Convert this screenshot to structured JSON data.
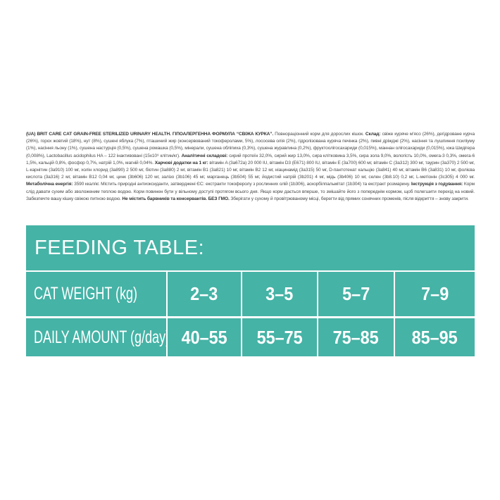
{
  "description": [
    {
      "bold": true,
      "text": "(UA) BRIT CARE CAT GRAIN-FREE STERILIZED URINARY HEALTH. ГІПОАЛЕРГЕННА ФОРМУЛА “СВІЖА КУРКА”. "
    },
    {
      "bold": false,
      "text": "Повнораціонний корм для дорослих кішок. "
    },
    {
      "bold": true,
      "text": "Склад: "
    },
    {
      "bold": false,
      "text": "свіже куряче м'ясо (26%), дегідроване курча (26%), горох жовтий (18%), нут (8%), сушені яблука (7%), пташиний жир (консервований токоферолами, 5%), лососева олія (2%), гідролізована куряча печінка (2%), пивні дріжджі (2%), насіння та лушпиння псиліуму (1%), насіння льону (1%), сушена настурція (0,5%), сушена ромашка (0,5%), мінерали, сушена обліпиха (0,3%), сушена журавлина (0,2%), фруктоолігосахариди (0,015%), маннан олігосахариди (0,015%), юка Шидігера (0,008%), Lactobacillus acidophilus HA – 122 інактивовані (15x10⁹ клітин/кг). "
    },
    {
      "bold": true,
      "text": "Аналітичні складові: "
    },
    {
      "bold": false,
      "text": "сирий протеїн 32,0%, сирий жир 13,0%, сира клітковина 3,5%, сира зола 9,0%, вологість 10,0%, омега-3 0,3%, омега-6 1,5%, кальцій 0,8%, фосфор 0,7%, натрій 1,0%, магній 0,04%. "
    },
    {
      "bold": true,
      "text": "Харчові додатки на 1 кг: "
    },
    {
      "bold": false,
      "text": "вітамін A (3a672a) 20 000 IU, вітамін D3 (E671) 800 IU, вітамін E (3a700) 600 мг, вітамін C (3a312) 300 мг, таурин (3a370) 2 500 мг, L-карнітин (3a910) 100 мг, холін хлорид (3a890) 2 500 мг, біотин (3a880) 2 мг, вітамін B1 (3a821) 10 мг, вітамін B2 12 мг, ніацинамід (3a315) 50 мг, D-пантотенат кальцію (3a841) 40 мг, вітамін B6 (3a831) 10 мг, фолієва кислота (3a316) 2 мг, вітамін B12 0,04 мг, цинк (3b606) 120 мг, залізо (3b106) 45 мг, марганець (3b504) 55 мг, йодистий натрій (3b201) 4 мг, мідь (3b406) 10 мг, селен (3b8.10) 0,2 мг, L-метіонін (3c305) 4 000 мг. "
    },
    {
      "bold": true,
      "text": "Метаболічна енергія: "
    },
    {
      "bold": false,
      "text": "3590 ккал/кг. Містить природні антиоксиданти, затверджені ЄС: екстракти токоферолу з рослинних олій (1b306), аскорбілпальмітат (1b304) та екстракт розмарину. "
    },
    {
      "bold": true,
      "text": "Інструкція з годування: "
    },
    {
      "bold": false,
      "text": "Корм слід давати сухим або зволоженим теплою водою. Корм повинен бути у вільному доступі протягом всього дня. Якщо корм дається вперше, то змішайте його з попереднім кормом, щоб полегшити перехід на новий. Забезпечте вашу кішку свіжою питною водою. "
    },
    {
      "bold": true,
      "text": "Не містить барвників та консервантів. БЕЗ ГМО. "
    },
    {
      "bold": false,
      "text": "Зберігати у сухому й провітрюваному місці, берегти від прямих сонячних променів, після відкриття – знову закрити."
    }
  ],
  "feeding_table": {
    "title": "FEEDING TABLE:",
    "rows": [
      {
        "label": "CAT WEIGHT (kg)",
        "values": [
          "2–3",
          "3–5",
          "5–7",
          "7–9"
        ]
      },
      {
        "label": "DAILY AMOUNT (g/day)",
        "values": [
          "40–55",
          "55–75",
          "75–85",
          "85–95"
        ]
      }
    ],
    "color": "#45b3a6"
  }
}
